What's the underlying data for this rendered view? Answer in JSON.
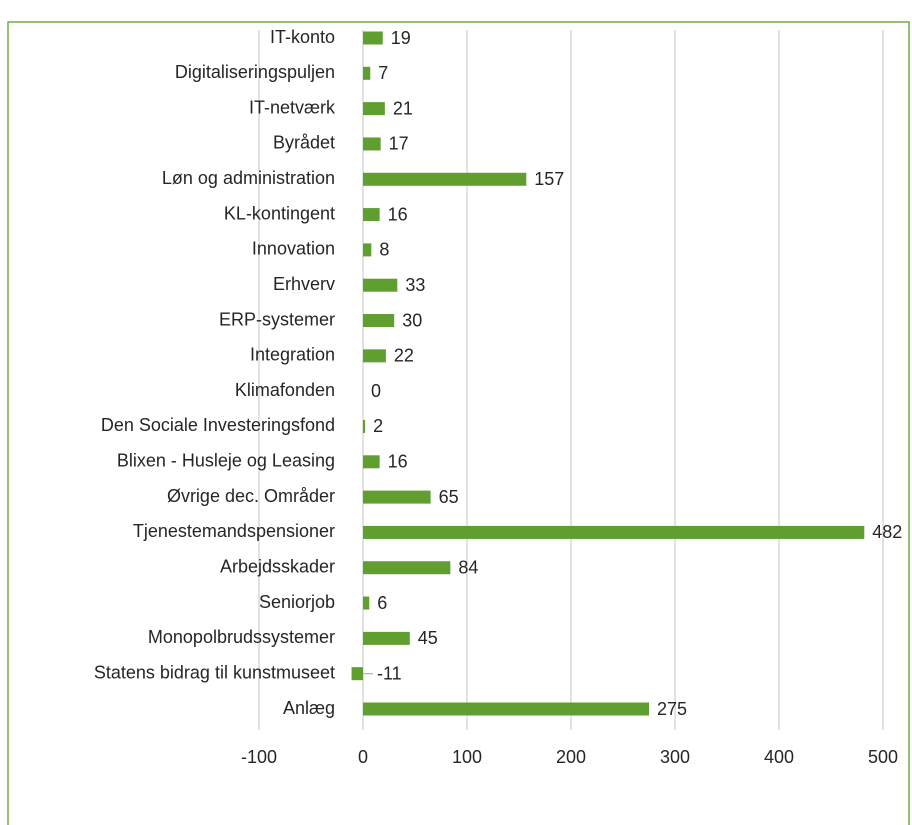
{
  "chart_data": {
    "type": "bar",
    "orientation": "horizontal",
    "categories": [
      "IT-konto",
      "Digitaliseringspuljen",
      "IT-netværk",
      "Byrådet",
      "Løn og administration",
      "KL-kontingent",
      "Innovation",
      "Erhverv",
      "ERP-systemer",
      "Integration",
      "Klimafonden",
      "Den Sociale Investeringsfond",
      "Blixen - Husleje og Leasing",
      "Øvrige dec. Områder",
      "Tjenestemandspensioner",
      "Arbejdsskader",
      "Seniorjob",
      "Monopolbrudssystemer",
      "Statens bidrag til kunstmuseet",
      "Anlæg"
    ],
    "values": [
      19,
      7,
      21,
      17,
      157,
      16,
      8,
      33,
      30,
      22,
      0,
      2,
      16,
      65,
      482,
      84,
      6,
      45,
      -11,
      275
    ],
    "color": "#5f9e2f",
    "xlim": [
      -100,
      500
    ],
    "xticks": [
      -100,
      0,
      100,
      200,
      300,
      400,
      500
    ],
    "grid": true
  }
}
